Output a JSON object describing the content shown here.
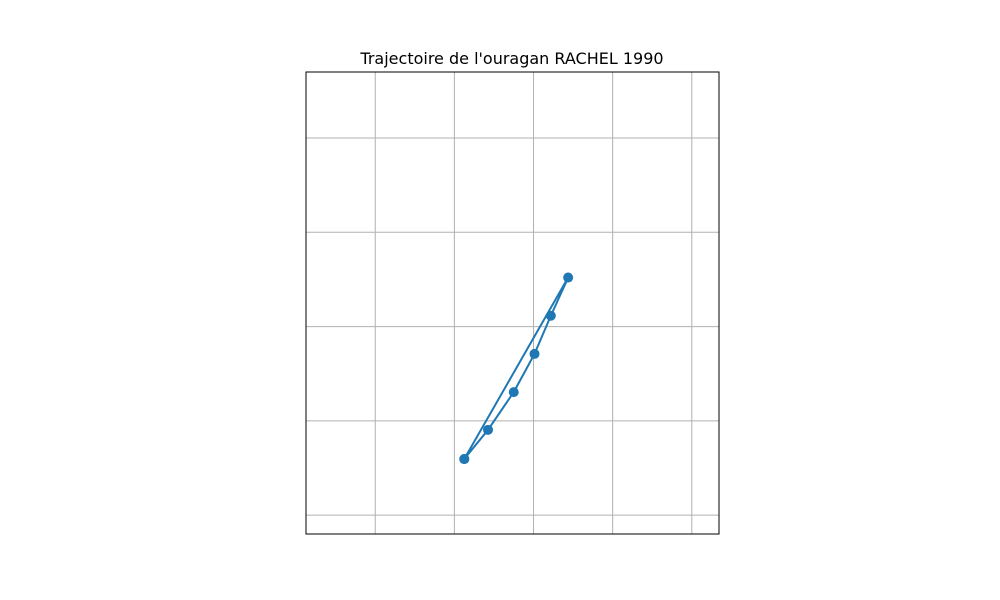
{
  "chart_data": {
    "type": "line",
    "title": "Trajectoire de l'ouragan RACHEL 1990",
    "xlabel": "",
    "ylabel": "",
    "grid": true,
    "axes_ticks_labels_shown": false,
    "xlim": [
      -2.2,
      6.15
    ],
    "ylim": [
      -3.9,
      5.9
    ],
    "grid_x": [
      -0.8,
      0.8,
      2.4,
      4.0,
      5.6
    ],
    "grid_y": [
      -3.5,
      -1.5,
      0.5,
      2.5,
      4.5
    ],
    "series": [
      {
        "color": "#1f77b4",
        "marker": "circle",
        "x": [
          1.0,
          1.48,
          2.0,
          2.42,
          2.75,
          3.1,
          1.0
        ],
        "y": [
          -2.31,
          -1.69,
          -0.89,
          -0.08,
          0.73,
          1.54,
          -2.31
        ]
      }
    ]
  }
}
